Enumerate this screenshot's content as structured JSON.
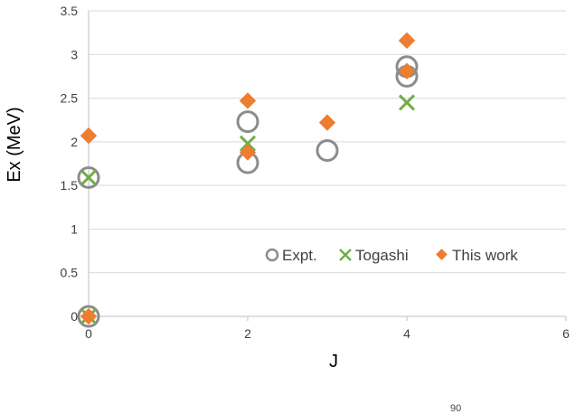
{
  "chart_data": {
    "type": "scatter",
    "title": "",
    "xlabel": "J",
    "ylabel": "Ex (MeV)",
    "xlim": [
      0,
      6
    ],
    "ylim": [
      0,
      3.5
    ],
    "xticks": [
      "0",
      "2",
      "4",
      "6"
    ],
    "yticks": [
      "0",
      "0.5",
      "1",
      "1.5",
      "2",
      "2.5",
      "3",
      "3.5"
    ],
    "grid": "horizontal",
    "legend_position": "bottom-right",
    "series": [
      {
        "name": "Expt.",
        "marker": "open-circle",
        "color": "#8c8c8c",
        "points": [
          [
            0,
            0
          ],
          [
            0,
            1.59
          ],
          [
            2,
            1.76
          ],
          [
            2,
            2.23
          ],
          [
            3,
            1.9
          ],
          [
            4,
            2.75
          ],
          [
            4,
            2.86
          ]
        ]
      },
      {
        "name": "Togashi",
        "marker": "x",
        "color": "#70ad47",
        "points": [
          [
            0,
            0
          ],
          [
            0,
            1.59
          ],
          [
            2,
            1.98
          ],
          [
            4,
            2.45
          ]
        ]
      },
      {
        "name": "This work",
        "marker": "diamond",
        "color": "#ed7d31",
        "points": [
          [
            0,
            0
          ],
          [
            0,
            2.07
          ],
          [
            2,
            1.88
          ],
          [
            2,
            2.47
          ],
          [
            3,
            2.22
          ],
          [
            4,
            2.81
          ],
          [
            4,
            3.16
          ]
        ]
      }
    ]
  },
  "footer_fragment": "90"
}
